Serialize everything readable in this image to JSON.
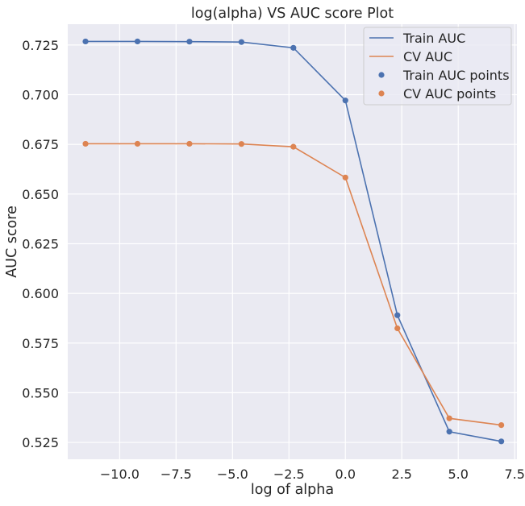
{
  "chart_data": {
    "type": "line",
    "title": "log(alpha) VS AUC score Plot",
    "xlabel": "log of alpha",
    "ylabel": "AUC score",
    "xlim": [
      -12.3,
      7.6
    ],
    "ylim": [
      0.5165,
      0.7355
    ],
    "xticks": [
      -10.0,
      -7.5,
      -5.0,
      -2.5,
      0.0,
      2.5,
      5.0,
      7.5
    ],
    "xtick_labels": [
      "−10.0",
      "−7.5",
      "−5.0",
      "−2.5",
      "0.0",
      "2.5",
      "5.0",
      "7.5"
    ],
    "yticks": [
      0.525,
      0.55,
      0.575,
      0.6,
      0.625,
      0.65,
      0.675,
      0.7,
      0.725
    ],
    "ytick_labels": [
      "0.525",
      "0.550",
      "0.575",
      "0.600",
      "0.625",
      "0.650",
      "0.675",
      "0.700",
      "0.725"
    ],
    "grid": true,
    "legend_position": "top-right",
    "x": [
      -11.513,
      -9.21,
      -6.908,
      -4.605,
      -2.303,
      0.0,
      2.303,
      4.605,
      6.908
    ],
    "series": [
      {
        "name": "Train AUC",
        "points_name": "Train AUC points",
        "color": "#4c72b0",
        "values": [
          0.7268,
          0.7268,
          0.7267,
          0.7265,
          0.7236,
          0.6971,
          0.589,
          0.5304,
          0.5255
        ]
      },
      {
        "name": "CV AUC",
        "points_name": "CV AUC points",
        "color": "#dd8452",
        "values": [
          0.6753,
          0.6753,
          0.6753,
          0.6752,
          0.6738,
          0.6583,
          0.5824,
          0.5371,
          0.5337
        ]
      }
    ]
  },
  "colors": {
    "plot_background": "#eaeaf2",
    "text": "#262626"
  }
}
